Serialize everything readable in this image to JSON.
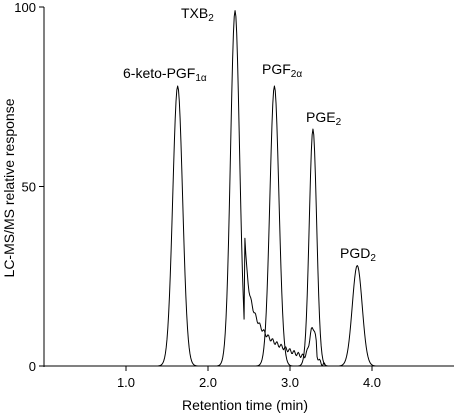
{
  "chart_data": {
    "type": "line",
    "xlabel": "Retention time (min)",
    "ylabel": "LC-MS/MS relative response",
    "xlim": [
      0,
      5.0
    ],
    "ylim": [
      0,
      100
    ],
    "x_ticks": [
      1.0,
      2.0,
      3.0,
      4.0
    ],
    "x_tick_labels": [
      "1.0",
      "2.0",
      "3.0",
      "4.0"
    ],
    "y_ticks": [
      0,
      50,
      100
    ],
    "y_tick_labels": [
      "0",
      "50",
      "100"
    ],
    "grid": false,
    "series": [
      {
        "name": "6-keto-PGF1α",
        "peak_x": 1.63,
        "peak_y": 78,
        "width": 0.06,
        "tail": 0
      },
      {
        "name": "TXB2",
        "peak_x": 2.33,
        "peak_y": 99,
        "width": 0.055,
        "tail": 1
      },
      {
        "name": "PGF2α",
        "peak_x": 2.81,
        "peak_y": 78,
        "width": 0.055,
        "tail": 0
      },
      {
        "name": "PGE2",
        "peak_x": 3.28,
        "peak_y": 66,
        "width": 0.045,
        "tail": 0
      },
      {
        "name": "PGD2",
        "peak_x": 3.82,
        "peak_y": 28,
        "width": 0.06,
        "tail": 0
      }
    ],
    "annotations": [
      {
        "base": "6-keto-PGF",
        "sub": "1α"
      },
      {
        "base": "TXB",
        "sub": "2"
      },
      {
        "base": "PGF",
        "sub": "2α"
      },
      {
        "base": "PGE",
        "sub": "2"
      },
      {
        "base": "PGD",
        "sub": "2"
      }
    ]
  }
}
